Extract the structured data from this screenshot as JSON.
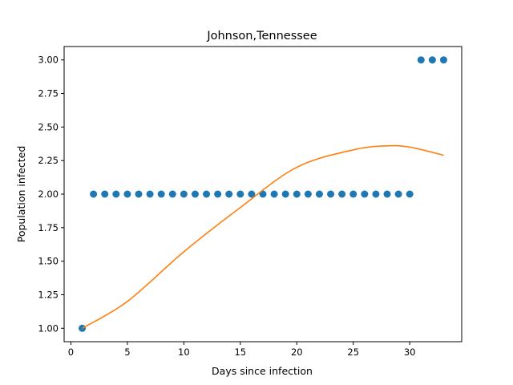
{
  "chart_data": {
    "type": "scatter",
    "title": "Johnson,Tennessee",
    "xlabel": "Days since infection",
    "ylabel": "Population infected",
    "xlim": [
      -0.6,
      34.6
    ],
    "ylim": [
      0.9,
      3.1
    ],
    "xticks": [
      0,
      5,
      10,
      15,
      20,
      25,
      30
    ],
    "xtick_labels": [
      "0",
      "5",
      "10",
      "15",
      "20",
      "25",
      "30"
    ],
    "yticks": [
      1.0,
      1.25,
      1.5,
      1.75,
      2.0,
      2.25,
      2.5,
      2.75,
      3.0
    ],
    "ytick_labels": [
      "1.00",
      "1.25",
      "1.50",
      "1.75",
      "2.00",
      "2.25",
      "2.50",
      "2.75",
      "3.00"
    ],
    "grid": false,
    "series": [
      {
        "kind": "scatter",
        "color": "#1f77b4",
        "x": [
          1,
          2,
          3,
          4,
          5,
          6,
          7,
          8,
          9,
          10,
          11,
          12,
          13,
          14,
          15,
          16,
          17,
          18,
          19,
          20,
          21,
          22,
          23,
          24,
          25,
          26,
          27,
          28,
          29,
          30,
          31,
          32,
          33
        ],
        "y": [
          1,
          2,
          2,
          2,
          2,
          2,
          2,
          2,
          2,
          2,
          2,
          2,
          2,
          2,
          2,
          2,
          2,
          2,
          2,
          2,
          2,
          2,
          2,
          2,
          2,
          2,
          2,
          2,
          2,
          2,
          3,
          3,
          3
        ]
      },
      {
        "kind": "line",
        "color": "#ff7f0e",
        "x": [
          1,
          5,
          10,
          15,
          20,
          25,
          28,
          30,
          33
        ],
        "y": [
          1.0,
          1.2,
          1.57,
          1.9,
          2.2,
          2.33,
          2.36,
          2.35,
          2.29
        ]
      }
    ]
  }
}
